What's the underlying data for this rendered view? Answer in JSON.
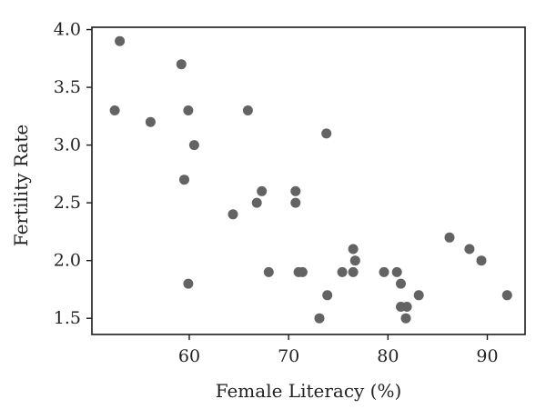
{
  "chart_data": {
    "type": "scatter",
    "title": "",
    "xlabel": "Female Literacy (%)",
    "ylabel": "Fertility Rate",
    "xlim": [
      50.2,
      93.8
    ],
    "ylim": [
      1.36,
      4.02
    ],
    "xticks": [
      60,
      70,
      80,
      90
    ],
    "yticks": [
      1.5,
      2.0,
      2.5,
      3.0,
      3.5,
      4.0
    ],
    "xtick_labels": [
      "60",
      "70",
      "80",
      "90"
    ],
    "ytick_labels": [
      "1.5",
      "2.0",
      "2.5",
      "3.0",
      "3.5",
      "4.0"
    ],
    "grid": false,
    "marker_color": "#636363",
    "points": [
      {
        "x": 53.0,
        "y": 3.9
      },
      {
        "x": 52.5,
        "y": 3.3
      },
      {
        "x": 56.1,
        "y": 3.2
      },
      {
        "x": 59.2,
        "y": 3.7
      },
      {
        "x": 59.5,
        "y": 2.7
      },
      {
        "x": 59.9,
        "y": 3.3
      },
      {
        "x": 60.5,
        "y": 3.0
      },
      {
        "x": 59.9,
        "y": 1.8
      },
      {
        "x": 64.4,
        "y": 2.4
      },
      {
        "x": 65.9,
        "y": 3.3
      },
      {
        "x": 66.8,
        "y": 2.5
      },
      {
        "x": 67.3,
        "y": 2.6
      },
      {
        "x": 68.0,
        "y": 1.9
      },
      {
        "x": 70.7,
        "y": 2.6
      },
      {
        "x": 70.7,
        "y": 2.5
      },
      {
        "x": 71.0,
        "y": 1.9
      },
      {
        "x": 71.4,
        "y": 1.9
      },
      {
        "x": 73.8,
        "y": 3.1
      },
      {
        "x": 73.9,
        "y": 1.7
      },
      {
        "x": 73.1,
        "y": 1.5
      },
      {
        "x": 75.4,
        "y": 1.9
      },
      {
        "x": 76.5,
        "y": 2.1
      },
      {
        "x": 76.5,
        "y": 1.9
      },
      {
        "x": 76.7,
        "y": 2.0
      },
      {
        "x": 79.6,
        "y": 1.9
      },
      {
        "x": 80.9,
        "y": 1.9
      },
      {
        "x": 81.3,
        "y": 1.8
      },
      {
        "x": 81.3,
        "y": 1.6
      },
      {
        "x": 81.9,
        "y": 1.6
      },
      {
        "x": 81.8,
        "y": 1.5
      },
      {
        "x": 83.1,
        "y": 1.7
      },
      {
        "x": 86.2,
        "y": 2.2
      },
      {
        "x": 88.2,
        "y": 2.1
      },
      {
        "x": 89.4,
        "y": 2.0
      },
      {
        "x": 92.0,
        "y": 1.7
      }
    ]
  }
}
